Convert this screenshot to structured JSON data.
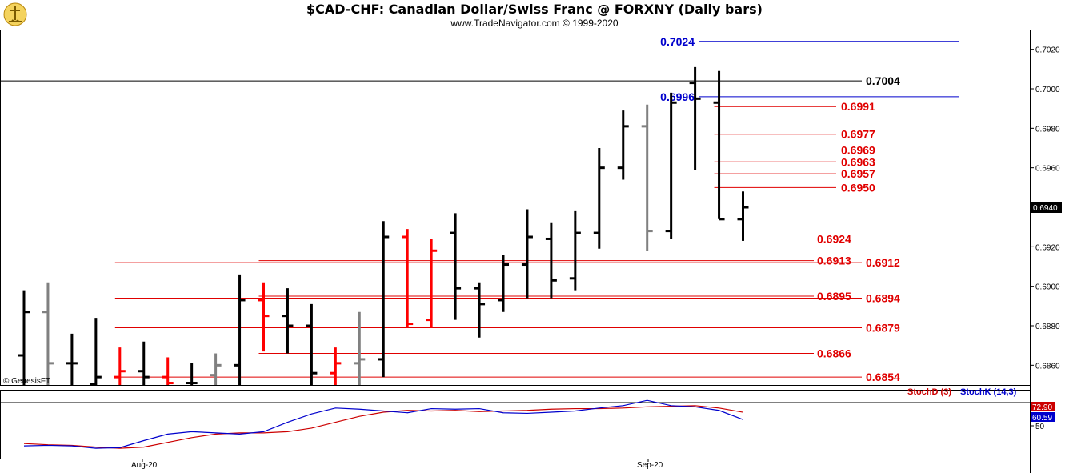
{
  "header": {
    "title": "$CAD-CHF:  Canadian Dollar/Swiss Franc @ FORXNY  (Daily bars)",
    "subtitle": "www.TradeNavigator.com © 1999-2020"
  },
  "watermark": "© GenesisFT",
  "colors": {
    "up": "#000000",
    "down": "#ff0000",
    "neutral": "#808080",
    "level_red": "#e00000",
    "level_blue": "#0000cc",
    "stoch_k": "#0000cc",
    "stoch_d": "#cc0000"
  },
  "chart_data": [
    {
      "type": "ohlc",
      "title": "$CAD-CHF:  Canadian Dollar/Swiss Franc @ FORXNY  (Daily bars)",
      "ylim": [
        0.685,
        0.703
      ],
      "y_ticks": [
        "0.7020",
        "0.7000",
        "0.6980",
        "0.6960",
        "0.6940",
        "0.6920",
        "0.6900",
        "0.6880",
        "0.6860"
      ],
      "last_price_label": "0.6940",
      "x_labels": [
        "Aug-20",
        "Sep-20"
      ],
      "bars": [
        {
          "o": 0.6865,
          "h": 0.6898,
          "l": 0.6845,
          "c": 0.6887,
          "col": "up"
        },
        {
          "o": 0.6887,
          "h": 0.6902,
          "l": 0.6845,
          "c": 0.6861,
          "col": "neutral"
        },
        {
          "o": 0.6861,
          "h": 0.6876,
          "l": 0.6845,
          "c": 0.6861,
          "col": "up"
        },
        {
          "o": 0.685,
          "h": 0.6884,
          "l": 0.6845,
          "c": 0.6854,
          "col": "up"
        },
        {
          "o": 0.6854,
          "h": 0.6869,
          "l": 0.6845,
          "c": 0.6857,
          "col": "down"
        },
        {
          "o": 0.6857,
          "h": 0.6872,
          "l": 0.6845,
          "c": 0.6854,
          "col": "up"
        },
        {
          "o": 0.6854,
          "h": 0.6864,
          "l": 0.6845,
          "c": 0.6851,
          "col": "down"
        },
        {
          "o": 0.6851,
          "h": 0.6861,
          "l": 0.6845,
          "c": 0.6851,
          "col": "up"
        },
        {
          "o": 0.6855,
          "h": 0.6866,
          "l": 0.6845,
          "c": 0.686,
          "col": "neutral"
        },
        {
          "o": 0.686,
          "h": 0.6906,
          "l": 0.685,
          "c": 0.6893,
          "col": "up"
        },
        {
          "o": 0.6893,
          "h": 0.6902,
          "l": 0.6867,
          "c": 0.6885,
          "col": "down"
        },
        {
          "o": 0.6885,
          "h": 0.6899,
          "l": 0.6866,
          "c": 0.688,
          "col": "up"
        },
        {
          "o": 0.688,
          "h": 0.6891,
          "l": 0.685,
          "c": 0.6856,
          "col": "up"
        },
        {
          "o": 0.6856,
          "h": 0.6869,
          "l": 0.6845,
          "c": 0.6861,
          "col": "down"
        },
        {
          "o": 0.6861,
          "h": 0.6887,
          "l": 0.6845,
          "c": 0.6863,
          "col": "neutral"
        },
        {
          "o": 0.6863,
          "h": 0.6933,
          "l": 0.6854,
          "c": 0.6925,
          "col": "up"
        },
        {
          "o": 0.6925,
          "h": 0.6929,
          "l": 0.6879,
          "c": 0.6881,
          "col": "down"
        },
        {
          "o": 0.6883,
          "h": 0.6924,
          "l": 0.6879,
          "c": 0.6918,
          "col": "down"
        },
        {
          "o": 0.6927,
          "h": 0.6937,
          "l": 0.6883,
          "c": 0.6899,
          "col": "up"
        },
        {
          "o": 0.6899,
          "h": 0.6902,
          "l": 0.6874,
          "c": 0.6891,
          "col": "up"
        },
        {
          "o": 0.6893,
          "h": 0.6916,
          "l": 0.6887,
          "c": 0.6911,
          "col": "up"
        },
        {
          "o": 0.6911,
          "h": 0.6939,
          "l": 0.6894,
          "c": 0.6925,
          "col": "up"
        },
        {
          "o": 0.6924,
          "h": 0.6932,
          "l": 0.6894,
          "c": 0.6903,
          "col": "up"
        },
        {
          "o": 0.6904,
          "h": 0.6938,
          "l": 0.6898,
          "c": 0.6927,
          "col": "up"
        },
        {
          "o": 0.6927,
          "h": 0.697,
          "l": 0.6919,
          "c": 0.696,
          "col": "up"
        },
        {
          "o": 0.696,
          "h": 0.6989,
          "l": 0.6954,
          "c": 0.6981,
          "col": "up"
        },
        {
          "o": 0.6981,
          "h": 0.6992,
          "l": 0.6918,
          "c": 0.6928,
          "col": "neutral"
        },
        {
          "o": 0.6928,
          "h": 0.6998,
          "l": 0.6924,
          "c": 0.6993,
          "col": "up"
        },
        {
          "o": 0.7003,
          "h": 0.7011,
          "l": 0.6959,
          "c": 0.6995,
          "col": "up"
        },
        {
          "o": 0.6993,
          "h": 0.7009,
          "l": 0.6934,
          "c": 0.6934,
          "col": "up"
        },
        {
          "o": 0.6934,
          "h": 0.6948,
          "l": 0.6923,
          "c": 0.694,
          "col": "up"
        }
      ],
      "levels": [
        {
          "label": "0.7024",
          "value": 0.7024,
          "color": "blue",
          "from_bar": 27,
          "side": "left"
        },
        {
          "label": "0.7004",
          "value": 0.7004,
          "color": "black",
          "from_bar": -1,
          "side": "right"
        },
        {
          "label": "0.6996",
          "value": 0.6996,
          "color": "blue",
          "from_bar": 27,
          "side": "left"
        },
        {
          "label": "0.6991",
          "value": 0.6991,
          "color": "red",
          "from_bar": 29,
          "side": "right"
        },
        {
          "label": "0.6977",
          "value": 0.6977,
          "color": "red",
          "from_bar": 29,
          "side": "right"
        },
        {
          "label": "0.6969",
          "value": 0.6969,
          "color": "red",
          "from_bar": 29,
          "side": "right"
        },
        {
          "label": "0.6963",
          "value": 0.6963,
          "color": "red",
          "from_bar": 29,
          "side": "right"
        },
        {
          "label": "0.6957",
          "value": 0.6957,
          "color": "red",
          "from_bar": 29,
          "side": "right"
        },
        {
          "label": "0.6950",
          "value": 0.695,
          "color": "red",
          "from_bar": 29,
          "side": "right"
        },
        {
          "label": "0.6924",
          "value": 0.6924,
          "color": "red",
          "from_bar": 10,
          "side": "mid"
        },
        {
          "label": "0.6913",
          "value": 0.6913,
          "color": "red",
          "from_bar": 10,
          "side": "mid"
        },
        {
          "label": "0.6912",
          "value": 0.6912,
          "color": "red",
          "from_bar": 4,
          "side": "right"
        },
        {
          "label": "0.6895",
          "value": 0.6895,
          "color": "red",
          "from_bar": 10,
          "side": "mid"
        },
        {
          "label": "0.6894",
          "value": 0.6894,
          "color": "red",
          "from_bar": 4,
          "side": "right"
        },
        {
          "label": "0.6879",
          "value": 0.6879,
          "color": "red",
          "from_bar": 4,
          "side": "right"
        },
        {
          "label": "0.6866",
          "value": 0.6866,
          "color": "red",
          "from_bar": 10,
          "side": "mid"
        },
        {
          "label": "0.6854",
          "value": 0.6854,
          "color": "red",
          "from_bar": 4,
          "side": "right"
        }
      ]
    },
    {
      "type": "line",
      "legend": [
        "StochD (3)",
        "StochK (14,3)"
      ],
      "ylim": [
        0,
        100
      ],
      "y_ticks": [
        "50"
      ],
      "value_labels": [
        "72.90",
        "60.59"
      ],
      "series": [
        {
          "name": "StochD (3)",
          "values": [
            20,
            18,
            17,
            14,
            12,
            14,
            22,
            30,
            36,
            38,
            38,
            40,
            46,
            56,
            66,
            73,
            76,
            75,
            76,
            74,
            75,
            76,
            78,
            79,
            79,
            80,
            82,
            83,
            84,
            80,
            72.9
          ]
        },
        {
          "name": "StochK (14,3)",
          "values": [
            16,
            17,
            16,
            12,
            13,
            25,
            36,
            40,
            38,
            36,
            40,
            56,
            70,
            80,
            78,
            75,
            72,
            79,
            78,
            79,
            72,
            71,
            73,
            75,
            80,
            84,
            93,
            84,
            82,
            76,
            60.59
          ]
        }
      ]
    }
  ]
}
